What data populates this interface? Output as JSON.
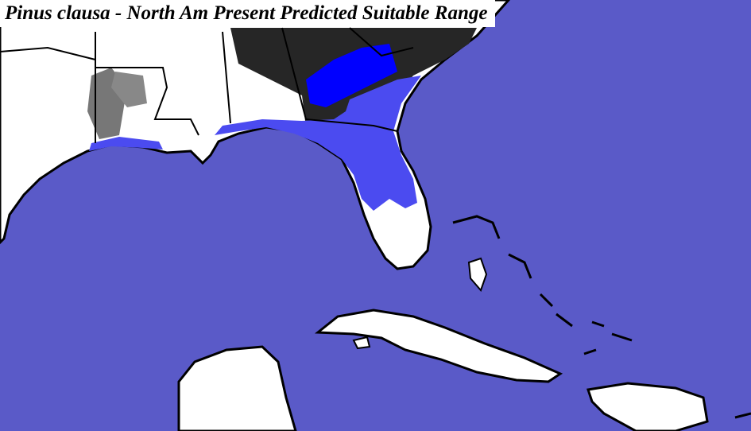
{
  "title": "Pinus clausa - North Am Present Predicted Suitable Range"
}
